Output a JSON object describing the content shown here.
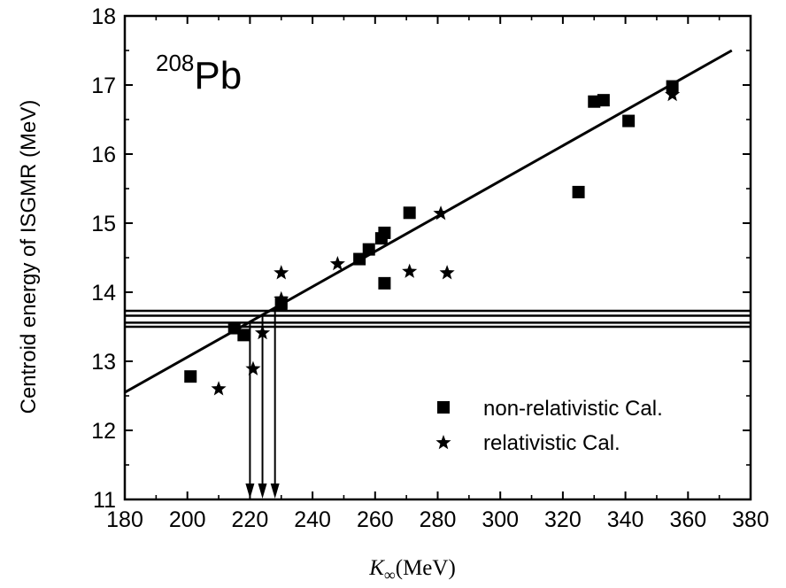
{
  "chart_data": {
    "type": "scatter",
    "title": "",
    "annotation": {
      "superscript": "208",
      "element": "Pb"
    },
    "xlabel": {
      "symbol": "K",
      "subscript": "∞",
      "unit": "(MeV)"
    },
    "ylabel": "Centroid energy of ISGMR (MeV)",
    "xlim": [
      180,
      380
    ],
    "ylim": [
      11,
      18
    ],
    "xticks": [
      "180",
      "200",
      "220",
      "240",
      "260",
      "280",
      "300",
      "320",
      "340",
      "360",
      "380"
    ],
    "yticks": [
      "11",
      "12",
      "13",
      "14",
      "15",
      "16",
      "17",
      "18"
    ],
    "grid": false,
    "legend_position": "bottom-right",
    "series": [
      {
        "name": "non-relativistic Cal.",
        "marker": "square",
        "x": [
          201,
          215,
          218,
          230,
          230,
          255,
          258,
          262,
          263,
          263,
          271,
          325,
          330,
          333,
          341,
          355
        ],
        "y": [
          12.78,
          13.48,
          13.38,
          13.82,
          13.85,
          14.48,
          14.62,
          14.78,
          14.86,
          14.13,
          15.15,
          15.45,
          16.76,
          16.78,
          16.48,
          16.98
        ]
      },
      {
        "name": "relativistic Cal.",
        "marker": "star",
        "x": [
          210,
          221,
          224,
          230,
          230,
          248,
          271,
          281,
          283,
          355
        ],
        "y": [
          12.6,
          12.89,
          13.41,
          14.28,
          13.9,
          14.41,
          14.3,
          15.14,
          14.28,
          16.86
        ]
      }
    ],
    "fit_line": {
      "x": [
        180,
        374
      ],
      "y": [
        12.55,
        17.5
      ]
    },
    "horizontal_lines_y": [
      13.5,
      13.56,
      13.66,
      13.73
    ],
    "vertical_arrows_x": [
      220,
      224,
      228
    ]
  }
}
